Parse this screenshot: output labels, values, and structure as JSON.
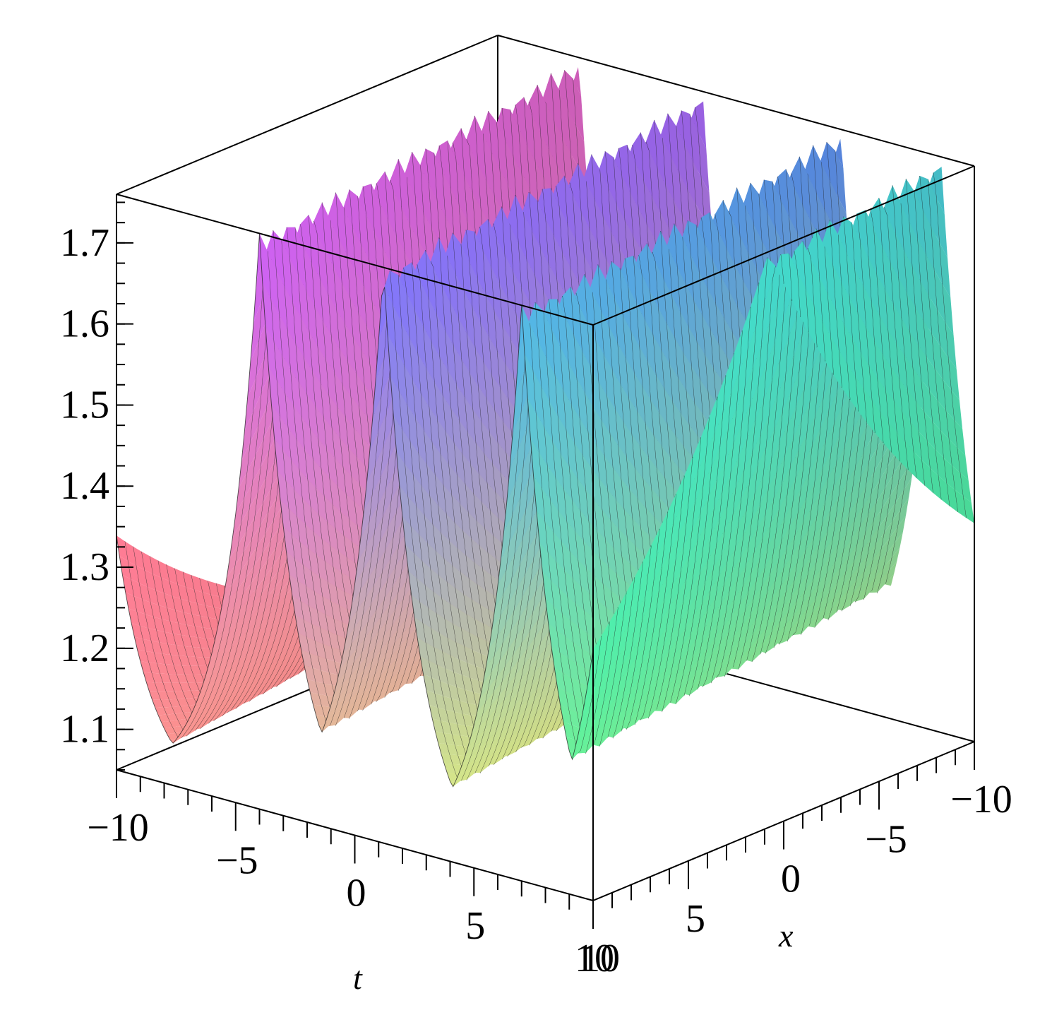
{
  "chart_data": {
    "type": "surface3d",
    "title": "",
    "xlabel": "t",
    "ylabel": "x",
    "zlabel": "",
    "t_range": [
      -10,
      10
    ],
    "x_range": [
      -10,
      10
    ],
    "z_range": [
      1.05,
      1.76
    ],
    "t_ticks": [
      "−10",
      "−5",
      "0",
      "5",
      "10"
    ],
    "x_ticks": [
      "−10",
      "−5",
      "0",
      "5",
      "10"
    ],
    "z_ticks": [
      "1.1",
      "1.2",
      "1.3",
      "1.4",
      "1.5",
      "1.6",
      "1.7"
    ],
    "z_tick_values": [
      1.1,
      1.2,
      1.3,
      1.4,
      1.5,
      1.6,
      1.7
    ],
    "surface": {
      "description_free": true,
      "baseline": 1.04,
      "peak": 1.76,
      "wave_period_t": 7.3,
      "wave_crest_t_at_x_-10": [
        -6.6,
        -1.4,
        4.4,
        8.6
      ],
      "crest_drift_per_unit_x": 0.13
    },
    "colormap": [
      "#ff6f9a",
      "#c85dff",
      "#5f7cff",
      "#45e3d8",
      "#5cff7a",
      "#f7ff6a"
    ],
    "grid": false,
    "legend": "none"
  }
}
